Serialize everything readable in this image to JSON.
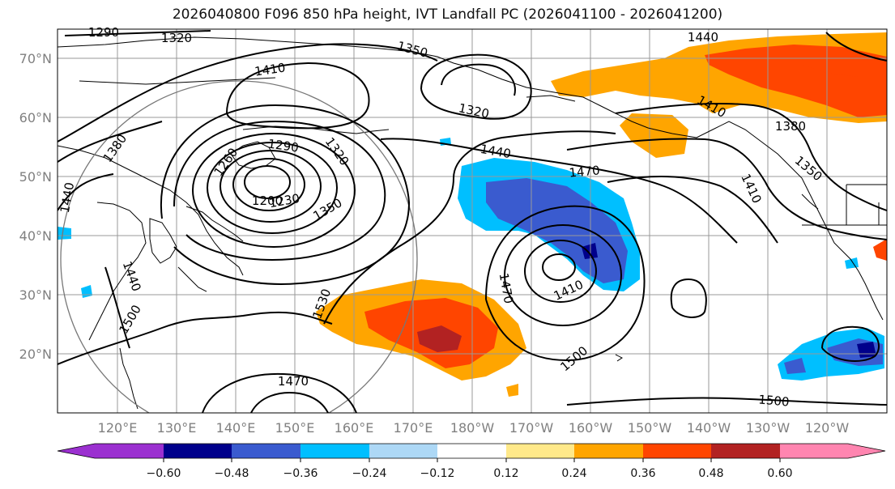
{
  "title": "2026040800 F096 850 hPa height, IVT Landfall PC (2026041100 - 2026041200)",
  "map": {
    "lat_labels": [
      "70°N",
      "60°N",
      "50°N",
      "40°N",
      "30°N",
      "20°N"
    ],
    "lon_labels": [
      "120°E",
      "130°E",
      "140°E",
      "150°E",
      "160°E",
      "170°E",
      "180°W",
      "170°W",
      "160°W",
      "150°W",
      "140°W",
      "130°W",
      "120°W"
    ],
    "contour_labels": [
      "1290",
      "1320",
      "1350",
      "1410",
      "1320",
      "1440",
      "1410",
      "1380",
      "1350",
      "1410",
      "1470",
      "1380",
      "1290",
      "1260",
      "1200",
      "1230",
      "1320",
      "1350",
      "1440",
      "1440",
      "1500",
      "1530",
      "1440",
      "1470",
      "1410",
      "1500",
      "1470",
      "1500"
    ]
  },
  "colorbar": {
    "ticks": [
      "−0.60",
      "−0.48",
      "−0.36",
      "−0.24",
      "−0.12",
      "0.12",
      "0.24",
      "0.36",
      "0.48",
      "0.60"
    ],
    "colors": {
      "under": "#9b30d0",
      "c1": "#00008b",
      "c2": "#3a5bcf",
      "c3": "#00bfff",
      "c4": "#add8f6",
      "c5": "#ffffff",
      "c6": "#ffe98a",
      "c7": "#ffa500",
      "c8": "#ff4500",
      "c9": "#b22222",
      "over": "#ff85b0"
    }
  }
}
